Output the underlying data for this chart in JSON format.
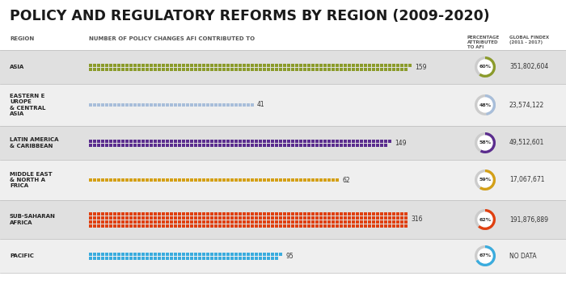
{
  "title": "POLICY AND REGULATORY REFORMS BY REGION (2009-2020)",
  "col1_header": "REGION",
  "col2_header": "NUMBER OF POLICY CHANGES AFI CONTRIBUTED TO",
  "col3_header": "PERCENTAGE\nATTRIBUTED\nTO AFI",
  "col4_header": "GLOBAL FINDEX\n(2011 - 2017)",
  "regions": [
    {
      "name": "ASIA",
      "value": 159,
      "color": "#8B9B2B",
      "pct": 60,
      "findex": "351,802,604",
      "block_rows": 2
    },
    {
      "name": "EASTERN E\nUROPE\n& CENTRAL\nASIA",
      "value": 41,
      "color": "#A8BEDA",
      "pct": 48,
      "findex": "23,574,122",
      "block_rows": 1
    },
    {
      "name": "LATIN AMERICA\n& CARIBBEAN",
      "value": 149,
      "color": "#5B2D8E",
      "pct": 58,
      "findex": "49,512,601",
      "block_rows": 2
    },
    {
      "name": "MIDDLE EAST\n& NORTH A\nFRICA",
      "value": 62,
      "color": "#D4A017",
      "pct": 59,
      "findex": "17,067,671",
      "block_rows": 1
    },
    {
      "name": "SUB-SAHARAN\nAFRICA",
      "value": 316,
      "color": "#E04010",
      "pct": 62,
      "findex": "191,876,889",
      "block_rows": 4
    },
    {
      "name": "PACIFIC",
      "value": 95,
      "color": "#3AACDE",
      "pct": 67,
      "findex": "NO DATA",
      "block_rows": 2
    }
  ],
  "max_value": 316,
  "bg_color": "#FFFFFF",
  "row_bg_even": "#E0E0E0",
  "row_bg_odd": "#EFEFEF",
  "header_bg": "#FFFFFF"
}
